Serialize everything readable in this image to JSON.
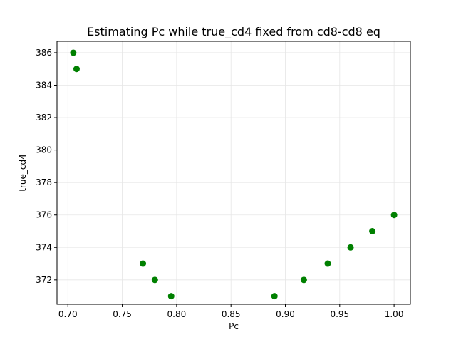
{
  "chart_data": {
    "type": "scatter",
    "title": "Estimating Pc while true_cd4 fixed from cd8-cd8 eq",
    "xlabel": "Pc",
    "ylabel": "true_cd4",
    "xlim": [
      0.69,
      1.015
    ],
    "ylim": [
      370.5,
      386.7
    ],
    "xticks": [
      0.7,
      0.75,
      0.8,
      0.85,
      0.9,
      0.95,
      1.0
    ],
    "xtick_labels": [
      "0.70",
      "0.75",
      "0.80",
      "0.85",
      "0.90",
      "0.95",
      "1.00"
    ],
    "yticks": [
      372,
      374,
      376,
      378,
      380,
      382,
      384,
      386
    ],
    "ytick_labels": [
      "372",
      "374",
      "376",
      "378",
      "380",
      "382",
      "384",
      "386"
    ],
    "grid": true,
    "point_color": "#008000",
    "grid_color": "#e6e6e6",
    "points": [
      {
        "x": 0.705,
        "y": 386
      },
      {
        "x": 0.708,
        "y": 385
      },
      {
        "x": 0.769,
        "y": 373
      },
      {
        "x": 0.78,
        "y": 372
      },
      {
        "x": 0.795,
        "y": 371
      },
      {
        "x": 0.89,
        "y": 371
      },
      {
        "x": 0.917,
        "y": 372
      },
      {
        "x": 0.939,
        "y": 373
      },
      {
        "x": 0.96,
        "y": 374
      },
      {
        "x": 0.98,
        "y": 375
      },
      {
        "x": 1.0,
        "y": 376
      }
    ]
  }
}
